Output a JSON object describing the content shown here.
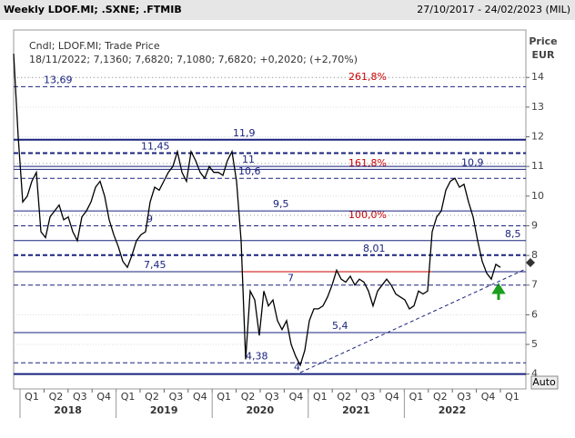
{
  "chart_data": {
    "type": "line",
    "title": "Weekly LDOF.MI; .SXNE; .FTMIB",
    "date_range": "27/10/2017 - 24/02/2023 (MIL)",
    "legend_line1": "Cndl; LDOF.MI; Trade Price",
    "legend_line2": "18/11/2022; 7,1360; 7,6820; 7,1080; 7,6820; +0,2020; (+2,70%)",
    "y_axis_title": "Price",
    "y_axis_unit": "EUR",
    "button": "Auto",
    "quarters": [
      "Q1",
      "Q2",
      "Q3",
      "Q4",
      "Q1",
      "Q2",
      "Q3",
      "Q4",
      "Q1",
      "Q2",
      "Q3",
      "Q4",
      "Q1",
      "Q2",
      "Q3",
      "Q4",
      "Q1",
      "Q2",
      "Q3",
      "Q4",
      "Q1"
    ],
    "years": [
      "2018",
      "2019",
      "2020",
      "2021",
      "2022"
    ],
    "ylim": [
      3.5,
      15.6
    ],
    "yticks": [
      4,
      5,
      6,
      7,
      8,
      9,
      10,
      11,
      12,
      13,
      14
    ],
    "series": [
      {
        "name": "LDOF.MI",
        "color": "#000000",
        "values": [
          14.8,
          12,
          9.8,
          10,
          10.5,
          10.8,
          8.8,
          8.6,
          9.3,
          9.5,
          9.7,
          9.2,
          9.3,
          8.8,
          8.5,
          9.3,
          9.5,
          9.8,
          10.3,
          10.5,
          10,
          9.2,
          8.7,
          8.3,
          7.8,
          7.6,
          8,
          8.5,
          8.7,
          8.8,
          9.8,
          10.3,
          10.2,
          10.5,
          10.8,
          11,
          11.5,
          10.8,
          10.5,
          11.5,
          11.2,
          10.8,
          10.6,
          11,
          10.8,
          10.8,
          10.7,
          11.2,
          11.5,
          10.5,
          8.5,
          4.5,
          6.8,
          6.5,
          5.3,
          6.8,
          6.3,
          6.5,
          5.8,
          5.5,
          5.8,
          5,
          4.6,
          4.3,
          4.8,
          5.8,
          6.2,
          6.2,
          6.3,
          6.6,
          7,
          7.5,
          7.2,
          7.1,
          7.3,
          7,
          7.2,
          7.1,
          6.8,
          6.3,
          6.8,
          7,
          7.2,
          7,
          6.7,
          6.6,
          6.5,
          6.2,
          6.3,
          6.8,
          6.7,
          6.8,
          8.8,
          9.3,
          9.5,
          10.2,
          10.5,
          10.6,
          10.3,
          10.4,
          9.8,
          9.3,
          8.5,
          7.8,
          7.4,
          7.2,
          7.7,
          7.6
        ]
      }
    ],
    "levels": [
      {
        "value": 13.69,
        "label": "13,69",
        "style": "dashed"
      },
      {
        "value": 11.9,
        "label": "11,9",
        "style": "thick"
      },
      {
        "value": 11.45,
        "label": "11,45",
        "style": "thickdash"
      },
      {
        "value": 11,
        "label": "11",
        "style": "solid"
      },
      {
        "value": 10.9,
        "label": "10,9",
        "style": "solid"
      },
      {
        "value": 10.6,
        "label": "10,6",
        "style": "dashed"
      },
      {
        "value": 9.5,
        "label": "9,5",
        "style": "solid"
      },
      {
        "value": 9,
        "label": "9",
        "style": "dashed"
      },
      {
        "value": 8.5,
        "label": "8,5",
        "style": "solid"
      },
      {
        "value": 8.01,
        "label": "8,01",
        "style": "thickdash"
      },
      {
        "value": 7.45,
        "label": "7,45",
        "style": "solid"
      },
      {
        "value": 7,
        "label": "7",
        "style": "dashed"
      },
      {
        "value": 5.4,
        "label": "5,4",
        "style": "solid"
      },
      {
        "value": 4.38,
        "label": "4,38",
        "style": "dashed"
      },
      {
        "value": 4,
        "label": "4",
        "style": "thick"
      }
    ],
    "fib_levels": [
      {
        "value": 14.0,
        "label": "261,8%"
      },
      {
        "value": 11.1,
        "label": "161,8%"
      },
      {
        "value": 9.35,
        "label": "100,0%"
      }
    ]
  }
}
